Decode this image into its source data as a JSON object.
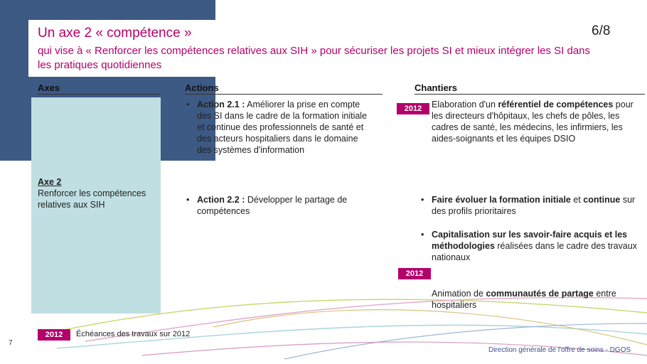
{
  "slide": {
    "title": "Un axe 2  « compétence »",
    "subtitle": "qui vise à  « Renforcer les compétences relatives aux SIH » pour sécuriser les projets SI et mieux intégrer les SI dans les pratiques quotidiennes",
    "page_indicator": "6/8",
    "slide_number": "7",
    "footer": "Direction générale de l'offre de soins - DGOS"
  },
  "columns": {
    "axes": "Axes",
    "actions": "Actions",
    "chantiers": "Chantiers"
  },
  "axe": {
    "title": "Axe 2",
    "text": "Renforcer les compétences relatives aux SIH"
  },
  "actions": [
    {
      "label": "Action 2.1 :",
      "text": " Améliorer la prise en compte des SI dans le cadre de la formation initiale et continue des professionnels de santé et des acteurs hospitaliers dans le domaine des systèmes d'information"
    },
    {
      "label": "Action 2.2 :",
      "text": " Développer le partage de compétences"
    }
  ],
  "chantiers": {
    "c1": {
      "tag": "2012",
      "pre": "Elaboration d'un ",
      "bold": "référentiel de compétences",
      "post": " pour les directeurs d'hôpitaux,  les chefs de pôles, les cadres de santé, les médecins, les infirmiers, les aides-soignants et les équipes DSIO"
    },
    "c2": {
      "bold1": "Faire évoluer la formation initiale",
      "mid": " et ",
      "bold2": "continue",
      "post": " sur des profils prioritaires"
    },
    "c3": {
      "bold": "Capitalisation sur les savoir-faire acquis et les méthodologies",
      "post": " réalisées dans le cadre des travaux nationaux"
    },
    "c4": {
      "tag": "2012",
      "pre": "Animation de ",
      "bold": "communautés de partage",
      "post": " entre hospitaliers"
    }
  },
  "legend": {
    "tag": "2012",
    "text": "Échéances des travaux sur 2012"
  },
  "colors": {
    "accent": "#b3006b",
    "navy": "#3d5a84",
    "axe_box": "#bfdfe3"
  }
}
